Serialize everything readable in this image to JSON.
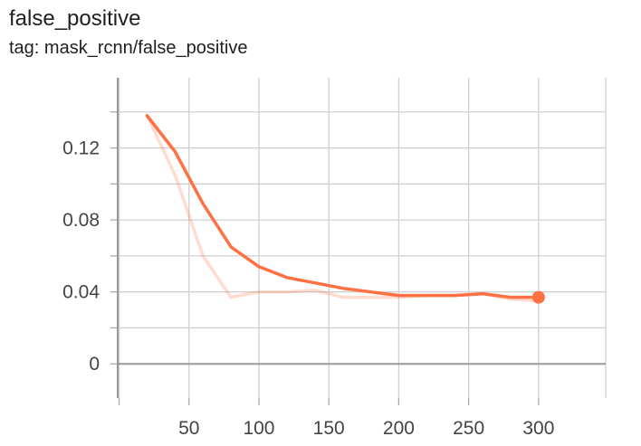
{
  "header": {
    "title": "false_positive",
    "tag": "tag: mask_rcnn/false_positive"
  },
  "chart_data": {
    "type": "line",
    "title": "false_positive",
    "subtitle": "tag: mask_rcnn/false_positive",
    "xlabel": "",
    "ylabel": "",
    "xlim": [
      -1,
      348
    ],
    "ylim": [
      -0.019,
      0.159
    ],
    "x_ticks": [
      50,
      100,
      150,
      200,
      250,
      300
    ],
    "x_tick_labels": [
      "50",
      "100",
      "150",
      "200",
      "250",
      "300"
    ],
    "y_ticks": [
      0,
      0.04,
      0.08,
      0.12
    ],
    "y_tick_labels": [
      "0",
      "0.04",
      "0.08",
      "0.12"
    ],
    "grid": true,
    "legend": "none",
    "series": [
      {
        "role": "raw",
        "color": "#ff7043",
        "opacity": 0.25,
        "x": [
          20,
          40,
          60,
          80,
          100,
          120,
          140,
          160,
          180,
          200,
          220,
          240,
          260,
          280,
          300
        ],
        "y": [
          0.138,
          0.105,
          0.06,
          0.037,
          0.04,
          0.04,
          0.041,
          0.037,
          0.037,
          0.037,
          0.038,
          0.038,
          0.039,
          0.036,
          0.035
        ]
      },
      {
        "role": "smoothed",
        "color": "#ff7043",
        "opacity": 1,
        "x": [
          20,
          40,
          60,
          80,
          100,
          120,
          140,
          160,
          180,
          200,
          220,
          240,
          260,
          280,
          300
        ],
        "y": [
          0.138,
          0.118,
          0.089,
          0.065,
          0.054,
          0.048,
          0.045,
          0.042,
          0.04,
          0.038,
          0.038,
          0.038,
          0.039,
          0.037,
          0.037
        ]
      }
    ],
    "highlight_point": {
      "x": 300,
      "y": 0.037
    }
  }
}
